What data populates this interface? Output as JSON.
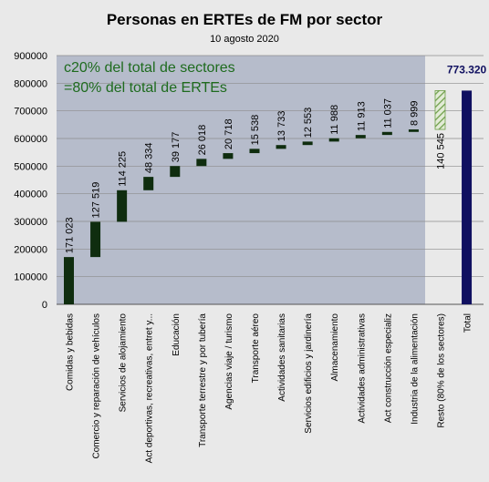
{
  "chart_data": {
    "type": "bar",
    "subtype": "waterfall",
    "title": "Personas en ERTEs de FM por sector",
    "subtitle": "10 agosto 2020",
    "ylim": [
      0,
      900000
    ],
    "yticks": [
      "0",
      "100000",
      "200000",
      "300000",
      "400000",
      "500000",
      "600000",
      "700000",
      "800000",
      "900000"
    ],
    "grid": true,
    "categories": [
      "Comidas y bebidas",
      "Comercio y reparación de vehículos",
      "Servicios de alojamiento",
      "Act deportivas, recreativas, entret y...",
      "Educación",
      "Transporte terrestre y por tubería",
      "Agencias viaje / turismo",
      "Transporte aéreo",
      "Actividades sanitarias",
      "Servicios edificios y jardinería",
      "Almacenamiento",
      "Actividades administrativas",
      "Act construcción especializ",
      "Industria de la alimentación",
      "Resto (80% de los sectores)",
      "Total"
    ],
    "values": [
      171023,
      127519,
      114225,
      48334,
      39177,
      26018,
      20718,
      15538,
      13733,
      12553,
      11988,
      11913,
      11037,
      8999,
      140545,
      773320
    ],
    "labels": [
      "171 023",
      "127 519",
      "114 225",
      "48 334",
      "39 177",
      "26 018",
      "20 718",
      "15 538",
      "13 733",
      "12 553",
      "11 988",
      "11 913",
      "11 037",
      "8 999",
      "140 545",
      "773.320"
    ],
    "annotation_lines": [
      "c20% del total de sectores",
      "=80% del total de ERTEs"
    ],
    "colors": {
      "bar": "#0f2d0f",
      "total": "#101060",
      "resto": "#8fbf6a",
      "shade": "#b6bccb",
      "annotation": "#1e6b1e",
      "background": "#e9e9e9"
    }
  }
}
